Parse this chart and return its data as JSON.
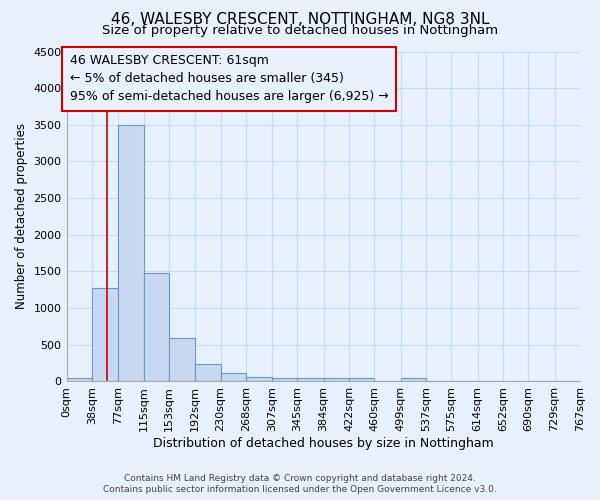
{
  "title": "46, WALESBY CRESCENT, NOTTINGHAM, NG8 3NL",
  "subtitle": "Size of property relative to detached houses in Nottingham",
  "xlabel": "Distribution of detached houses by size in Nottingham",
  "ylabel": "Number of detached properties",
  "bar_values": [
    50,
    1280,
    3500,
    1480,
    590,
    240,
    115,
    65,
    50,
    50,
    50,
    50,
    0,
    50,
    0,
    0,
    0,
    0,
    0,
    0
  ],
  "bin_edges": [
    0,
    38,
    77,
    115,
    153,
    192,
    230,
    268,
    307,
    345,
    384,
    422,
    460,
    499,
    537,
    575,
    614,
    652,
    690,
    729,
    767
  ],
  "tick_labels": [
    "0sqm",
    "38sqm",
    "77sqm",
    "115sqm",
    "153sqm",
    "192sqm",
    "230sqm",
    "268sqm",
    "307sqm",
    "345sqm",
    "384sqm",
    "422sqm",
    "460sqm",
    "499sqm",
    "537sqm",
    "575sqm",
    "614sqm",
    "652sqm",
    "690sqm",
    "729sqm",
    "767sqm"
  ],
  "bar_facecolor": "#c8d8f0",
  "bar_edgecolor": "#6699cc",
  "grid_color": "#c8dcee",
  "bg_color": "#e8f0fc",
  "red_line_x": 61,
  "annotation_line1": "46 WALESBY CRESCENT: 61sqm",
  "annotation_line2": "← 5% of detached houses are smaller (345)",
  "annotation_line3": "95% of semi-detached houses are larger (6,925) →",
  "annotation_box_color": "#cc0000",
  "ylim": [
    0,
    4500
  ],
  "yticks": [
    0,
    500,
    1000,
    1500,
    2000,
    2500,
    3000,
    3500,
    4000,
    4500
  ],
  "footer_line1": "Contains HM Land Registry data © Crown copyright and database right 2024.",
  "footer_line2": "Contains public sector information licensed under the Open Government Licence v3.0.",
  "title_fontsize": 11,
  "subtitle_fontsize": 9.5,
  "annot_fontsize": 9
}
